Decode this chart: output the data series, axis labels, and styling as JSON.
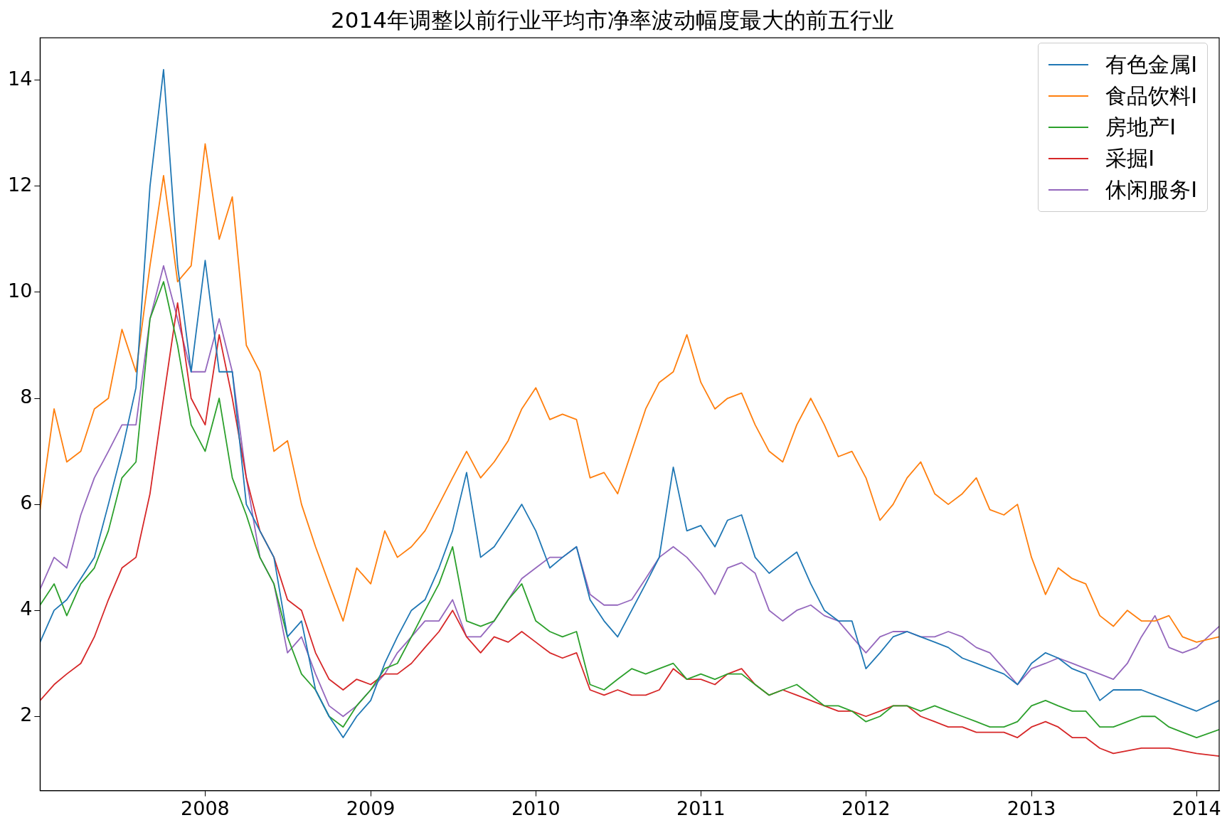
{
  "chart_data": {
    "type": "line",
    "title": "2014年调整以前行业平均市净率波动幅度最大的前五行业",
    "x": [
      "2007-01",
      "2007-02",
      "2007-03",
      "2007-04",
      "2007-05",
      "2007-06",
      "2007-07",
      "2007-08",
      "2007-09",
      "2007-10",
      "2007-11",
      "2007-12",
      "2008-01",
      "2008-02",
      "2008-03",
      "2008-04",
      "2008-05",
      "2008-06",
      "2008-07",
      "2008-08",
      "2008-09",
      "2008-10",
      "2008-11",
      "2008-12",
      "2009-01",
      "2009-02",
      "2009-03",
      "2009-04",
      "2009-05",
      "2009-06",
      "2009-07",
      "2009-08",
      "2009-09",
      "2009-10",
      "2009-11",
      "2009-12",
      "2010-01",
      "2010-02",
      "2010-03",
      "2010-04",
      "2010-05",
      "2010-06",
      "2010-07",
      "2010-08",
      "2010-09",
      "2010-10",
      "2010-11",
      "2010-12",
      "2011-01",
      "2011-02",
      "2011-03",
      "2011-04",
      "2011-05",
      "2011-06",
      "2011-07",
      "2011-08",
      "2011-09",
      "2011-10",
      "2011-11",
      "2011-12",
      "2012-01",
      "2012-02",
      "2012-03",
      "2012-04",
      "2012-05",
      "2012-06",
      "2012-07",
      "2012-08",
      "2012-09",
      "2012-10",
      "2012-11",
      "2012-12",
      "2013-01",
      "2013-02",
      "2013-03",
      "2013-04",
      "2013-05",
      "2013-06",
      "2013-07",
      "2013-08",
      "2013-09",
      "2013-10",
      "2013-11",
      "2013-12",
      "2014-01",
      "2014-02-20"
    ],
    "series": [
      {
        "name": "有色金属I",
        "color": "#1f77b4",
        "values": [
          3.4,
          4.0,
          4.2,
          4.6,
          5.0,
          6.0,
          7.0,
          8.2,
          12.0,
          14.2,
          10.5,
          8.5,
          10.6,
          8.5,
          8.5,
          6.0,
          5.5,
          5.0,
          3.5,
          3.8,
          2.5,
          2.0,
          1.6,
          2.0,
          2.3,
          3.0,
          3.5,
          4.0,
          4.2,
          4.8,
          5.5,
          6.6,
          5.0,
          5.2,
          5.6,
          6.0,
          5.5,
          4.8,
          5.0,
          5.2,
          4.2,
          3.8,
          3.5,
          4.0,
          4.5,
          5.0,
          6.7,
          5.5,
          5.6,
          5.2,
          5.7,
          5.8,
          5.0,
          4.7,
          4.9,
          5.1,
          4.5,
          4.0,
          3.8,
          3.8,
          2.9,
          3.2,
          3.5,
          3.6,
          3.5,
          3.4,
          3.3,
          3.1,
          3.0,
          2.9,
          2.8,
          2.6,
          3.0,
          3.2,
          3.1,
          2.9,
          2.8,
          2.3,
          2.5,
          2.5,
          2.5,
          2.4,
          2.3,
          2.2,
          2.1,
          2.3
        ]
      },
      {
        "name": "食品饮料I",
        "color": "#ff7f0e",
        "values": [
          5.9,
          7.8,
          6.8,
          7.0,
          7.8,
          8.0,
          9.3,
          8.5,
          10.5,
          12.2,
          10.2,
          10.5,
          12.8,
          11.0,
          11.8,
          9.0,
          8.5,
          7.0,
          7.2,
          6.0,
          5.2,
          4.5,
          3.8,
          4.8,
          4.5,
          5.5,
          5.0,
          5.2,
          5.5,
          6.0,
          6.5,
          7.0,
          6.5,
          6.8,
          7.2,
          7.8,
          8.2,
          7.6,
          7.7,
          7.6,
          6.5,
          6.6,
          6.2,
          7.0,
          7.8,
          8.3,
          8.5,
          9.2,
          8.3,
          7.8,
          8.0,
          8.1,
          7.5,
          7.0,
          6.8,
          7.5,
          8.0,
          7.5,
          6.9,
          7.0,
          6.5,
          5.7,
          6.0,
          6.5,
          6.8,
          6.2,
          6.0,
          6.2,
          6.5,
          5.9,
          5.8,
          6.0,
          5.0,
          4.3,
          4.8,
          4.6,
          4.5,
          3.9,
          3.7,
          4.0,
          3.8,
          3.8,
          3.9,
          3.5,
          3.4,
          3.5
        ]
      },
      {
        "name": "房地产I",
        "color": "#2ca02c",
        "values": [
          4.1,
          4.5,
          3.9,
          4.5,
          4.8,
          5.5,
          6.5,
          6.8,
          9.5,
          10.2,
          9.0,
          7.5,
          7.0,
          8.0,
          6.5,
          5.8,
          5.0,
          4.5,
          3.5,
          2.8,
          2.5,
          2.0,
          1.8,
          2.2,
          2.5,
          2.9,
          3.0,
          3.5,
          4.0,
          4.5,
          5.2,
          3.8,
          3.7,
          3.8,
          4.2,
          4.5,
          3.8,
          3.6,
          3.5,
          3.6,
          2.6,
          2.5,
          2.7,
          2.9,
          2.8,
          2.9,
          3.0,
          2.7,
          2.8,
          2.7,
          2.8,
          2.8,
          2.6,
          2.4,
          2.5,
          2.6,
          2.4,
          2.2,
          2.2,
          2.1,
          1.9,
          2.0,
          2.2,
          2.2,
          2.1,
          2.2,
          2.1,
          2.0,
          1.9,
          1.8,
          1.8,
          1.9,
          2.2,
          2.3,
          2.2,
          2.1,
          2.1,
          1.8,
          1.8,
          1.9,
          2.0,
          2.0,
          1.8,
          1.7,
          1.6,
          1.75
        ]
      },
      {
        "name": "采掘I",
        "color": "#d62728",
        "values": [
          2.3,
          2.6,
          2.8,
          3.0,
          3.5,
          4.2,
          4.8,
          5.0,
          6.2,
          8.0,
          9.8,
          8.0,
          7.5,
          9.2,
          8.0,
          6.5,
          5.5,
          5.0,
          4.2,
          4.0,
          3.2,
          2.7,
          2.5,
          2.7,
          2.6,
          2.8,
          2.8,
          3.0,
          3.3,
          3.6,
          4.0,
          3.5,
          3.2,
          3.5,
          3.4,
          3.6,
          3.4,
          3.2,
          3.1,
          3.2,
          2.5,
          2.4,
          2.5,
          2.4,
          2.4,
          2.5,
          2.9,
          2.7,
          2.7,
          2.6,
          2.8,
          2.9,
          2.6,
          2.4,
          2.5,
          2.4,
          2.3,
          2.2,
          2.1,
          2.1,
          2.0,
          2.1,
          2.2,
          2.2,
          2.0,
          1.9,
          1.8,
          1.8,
          1.7,
          1.7,
          1.7,
          1.6,
          1.8,
          1.9,
          1.8,
          1.6,
          1.6,
          1.4,
          1.3,
          1.35,
          1.4,
          1.4,
          1.4,
          1.35,
          1.3,
          1.25
        ]
      },
      {
        "name": "休闲服务I",
        "color": "#9467bd",
        "values": [
          4.4,
          5.0,
          4.8,
          5.8,
          6.5,
          7.0,
          7.5,
          7.5,
          9.5,
          10.5,
          9.5,
          8.5,
          8.5,
          9.5,
          8.5,
          6.5,
          5.0,
          4.5,
          3.2,
          3.5,
          2.8,
          2.2,
          2.0,
          2.2,
          2.5,
          2.8,
          3.2,
          3.5,
          3.8,
          3.8,
          4.2,
          3.5,
          3.5,
          3.8,
          4.2,
          4.6,
          4.8,
          5.0,
          5.0,
          5.2,
          4.3,
          4.1,
          4.1,
          4.2,
          4.6,
          5.0,
          5.2,
          5.0,
          4.7,
          4.3,
          4.8,
          4.9,
          4.7,
          4.0,
          3.8,
          4.0,
          4.1,
          3.9,
          3.8,
          3.5,
          3.2,
          3.5,
          3.6,
          3.6,
          3.5,
          3.5,
          3.6,
          3.5,
          3.3,
          3.2,
          2.9,
          2.6,
          2.9,
          3.0,
          3.1,
          3.0,
          2.9,
          2.8,
          2.7,
          3.0,
          3.5,
          3.9,
          3.3,
          3.2,
          3.3,
          3.7
        ]
      }
    ],
    "xlim": [
      "2007-01",
      "2014-02-20"
    ],
    "xticks": [
      "2008",
      "2009",
      "2010",
      "2011",
      "2012",
      "2013",
      "2014"
    ],
    "ylim": [
      0.6,
      14.8
    ],
    "yticks": [
      2,
      4,
      6,
      8,
      10,
      12,
      14
    ],
    "grid": false,
    "legend": "top right",
    "marker": "none",
    "line_style": "solid"
  }
}
